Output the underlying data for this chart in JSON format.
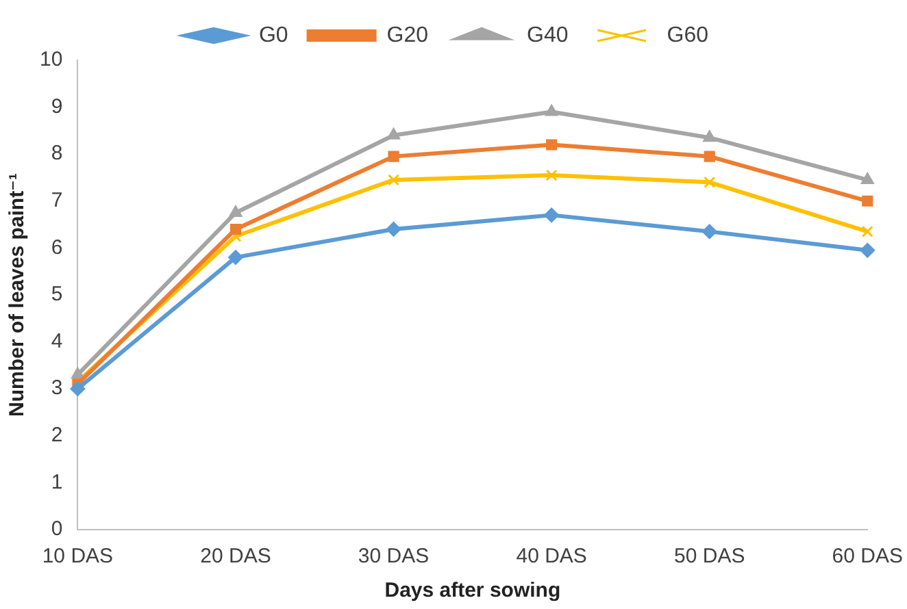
{
  "chart_data": {
    "type": "line",
    "xlabel": "Days after sowing",
    "ylabel": "Number of leaves paint⁻¹",
    "categories": [
      "10 DAS",
      "20 DAS",
      "30 DAS",
      "40 DAS",
      "50 DAS",
      "60 DAS"
    ],
    "series": [
      {
        "name": "G0",
        "color": "#5b9bd5",
        "marker": "diamond",
        "values": [
          3.0,
          5.8,
          6.4,
          6.7,
          6.35,
          5.95
        ]
      },
      {
        "name": "G20",
        "color": "#ed7d31",
        "marker": "square",
        "values": [
          3.1,
          6.4,
          7.95,
          8.2,
          7.95,
          7.0
        ]
      },
      {
        "name": "G40",
        "color": "#a5a5a5",
        "marker": "triangle",
        "values": [
          3.3,
          6.75,
          8.4,
          8.9,
          8.35,
          7.45
        ]
      },
      {
        "name": "G60",
        "color": "#ffc000",
        "marker": "cross",
        "values": [
          3.15,
          6.25,
          7.45,
          7.55,
          7.4,
          6.35
        ]
      }
    ],
    "ylim": [
      0,
      10
    ],
    "yticks": [
      0,
      1,
      2,
      3,
      4,
      5,
      6,
      7,
      8,
      9,
      10
    ],
    "grid": false,
    "legend": "top"
  }
}
